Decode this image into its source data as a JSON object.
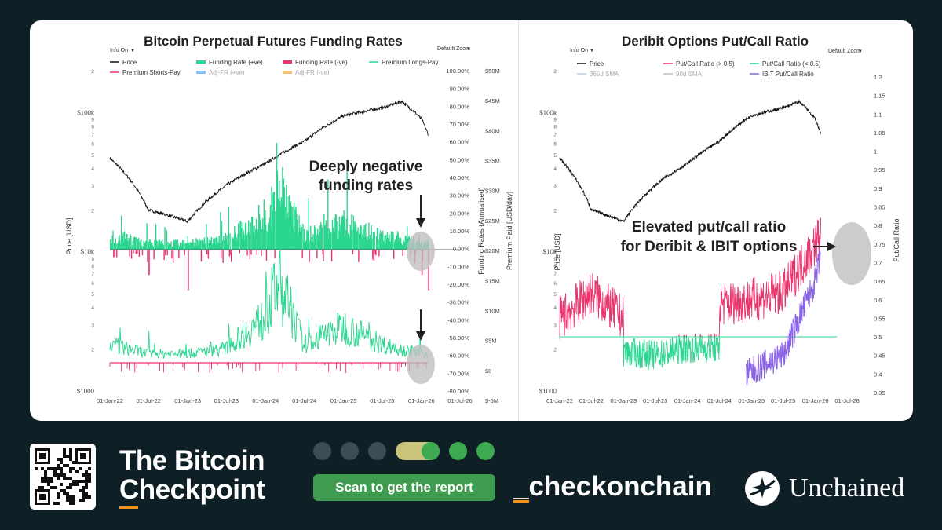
{
  "colors": {
    "price": "#111111",
    "funding_pos": "#2bd68f",
    "funding_neg": "#e8356d",
    "premium_longs": "#2bd68f",
    "premium_shorts": "#e8356d",
    "adj_fr_pos": "#8fc1ee",
    "adj_fr_neg": "#f4c27f",
    "pc_high": "#e8356d",
    "pc_low": "#2bd68f",
    "sma365": "#b9d4ee",
    "sma90": "#bdbdbd",
    "ibit": "#8a63e6",
    "highlight": "#bfbfbf",
    "brand_green": "#3f9b50",
    "accent_orange": "#f7931a",
    "background": "#0f1f26"
  },
  "chart_data": [
    {
      "type": "line",
      "title": "Bitcoin Perpetual Futures Funding Rates",
      "info_label": "Info On",
      "zoom_label": "Default Zoom",
      "xlabel": "",
      "ylabel_left": "Price [USD]",
      "ylabel_right": "Funding Rates (Annualised)",
      "ylabel_right2": "Premium Paid [USD/day]",
      "x_ticks": [
        "01-Jan-22",
        "01-Jul-22",
        "01-Jan-23",
        "01-Jul-23",
        "01-Jan-24",
        "01-Jul-24",
        "01-Jan-25",
        "01-Jul-25",
        "01-Jan-26",
        "01-Jul-26"
      ],
      "price_ticks": [
        "$100k",
        "$10k",
        "$1000"
      ],
      "price_minor_ticks": [
        "9",
        "8",
        "7",
        "6",
        "5",
        "4",
        "3",
        "2"
      ],
      "price_top_minor": "2",
      "rate_ticks": [
        "100.00%",
        "90.00%",
        "80.00%",
        "70.00%",
        "60.00%",
        "50.00%",
        "40.00%",
        "30.00%",
        "20.00%",
        "10.00%",
        "0.00%",
        "-10.00%",
        "-20.00%",
        "-30.00%",
        "-40.00%",
        "-50.00%",
        "-60.00%",
        "-70.00%",
        "-80.00%"
      ],
      "premium_ticks": [
        "$50M",
        "$45M",
        "$40M",
        "$35M",
        "$30M",
        "$25M",
        "$20M",
        "$15M",
        "$10M",
        "$5M",
        "$0",
        "$-5M"
      ],
      "legend": [
        "Price",
        "Funding Rate (+ve)",
        "Funding Rate (-ve)",
        "Premium Longs-Pay",
        "Premium Shorts-Pay",
        "Adj-FR (+ve)",
        "Adj-FR (-ve)"
      ],
      "annotation": [
        "Deeply negative",
        "funding rates"
      ],
      "series": [
        {
          "name": "Price",
          "x": [
            "01-Jan-22",
            "01-Jul-22",
            "01-Jan-23",
            "01-Jul-23",
            "01-Jan-24",
            "01-Jul-24",
            "01-Jan-25",
            "01-Jul-25",
            "01-Oct-25",
            "01-Jan-26",
            "01-Feb-26"
          ],
          "values": [
            47000,
            20000,
            16500,
            30000,
            43000,
            62000,
            95000,
            108000,
            120000,
            90000,
            70000
          ]
        },
        {
          "name": "Funding Rate (+ve)",
          "x": [
            "01-Jan-22",
            "01-Jul-22",
            "01-Jan-23",
            "01-Jul-23",
            "01-Jan-24",
            "01-Mar-24",
            "01-Jul-24",
            "01-Jan-25",
            "01-Jul-25",
            "01-Jan-26"
          ],
          "values": [
            10,
            5,
            5,
            8,
            25,
            45,
            10,
            20,
            10,
            5
          ]
        },
        {
          "name": "Funding Rate (-ve)",
          "x": [
            "01-Jul-22",
            "01-Jan-23",
            "01-Jan-26",
            "01-Feb-26"
          ],
          "values": [
            -5,
            -8,
            -5,
            -8
          ]
        }
      ]
    },
    {
      "type": "line",
      "title": "Deribit Options Put/Call Ratio",
      "info_label": "Info On",
      "zoom_label": "Default Zoom",
      "xlabel": "",
      "ylabel_left": "Price [USD]",
      "ylabel_right": "Put/Call Ratio",
      "x_ticks": [
        "01-Jan-22",
        "01-Jul-22",
        "01-Jan-23",
        "01-Jul-23",
        "01-Jan-24",
        "01-Jul-24",
        "01-Jan-25",
        "01-Jul-25",
        "01-Jan-26",
        "01-Jul-26"
      ],
      "price_ticks": [
        "$100k",
        "$10k",
        "$1000"
      ],
      "price_minor_ticks": [
        "9",
        "8",
        "7",
        "6",
        "5",
        "4",
        "3",
        "2"
      ],
      "price_top_minor": "2",
      "ratio_ticks": [
        "1.2",
        "1.15",
        "1.1",
        "1.05",
        "1",
        "0.95",
        "0.9",
        "0.85",
        "0.8",
        "0.75",
        "0.7",
        "0.65",
        "0.6",
        "0.55",
        "0.5",
        "0.45",
        "0.4",
        "0.35"
      ],
      "legend": [
        "Price",
        "Put/Call Ratio (> 0.5)",
        "Put/Call Ratio (< 0.5)",
        "365d SMA",
        "90d SMA",
        "IBIT Put/Call Ratio"
      ],
      "annotation": [
        "Elevated put/call ratio",
        "for Deribit & IBIT options"
      ],
      "series": [
        {
          "name": "Price",
          "x": [
            "01-Jan-22",
            "01-Jul-22",
            "01-Jan-23",
            "01-Jul-23",
            "01-Jan-24",
            "01-Jul-24",
            "01-Jan-25",
            "01-Jul-25",
            "01-Oct-25",
            "01-Jan-26",
            "01-Feb-26"
          ],
          "values": [
            47000,
            20000,
            16500,
            30000,
            43000,
            62000,
            95000,
            108000,
            120000,
            90000,
            70000
          ]
        },
        {
          "name": "Put/Call Ratio (> 0.5)",
          "x": [
            "01-Jan-22",
            "01-Jul-22",
            "01-Jan-23",
            "01-Jan-25",
            "01-Jul-25",
            "01-Jan-26",
            "01-Feb-26"
          ],
          "values": [
            0.55,
            0.62,
            0.55,
            0.6,
            0.62,
            0.75,
            0.78
          ]
        },
        {
          "name": "Put/Call Ratio (< 0.5)",
          "x": [
            "01-Jan-23",
            "01-Jul-23",
            "01-Jan-24",
            "01-Jul-24"
          ],
          "values": [
            0.46,
            0.45,
            0.47,
            0.47
          ]
        },
        {
          "name": "IBIT Put/Call Ratio",
          "x": [
            "01-Dec-24",
            "01-Jul-25",
            "01-Oct-25",
            "01-Jan-26",
            "01-Feb-26"
          ],
          "values": [
            0.4,
            0.45,
            0.55,
            0.65,
            0.72
          ]
        }
      ]
    }
  ],
  "footer": {
    "brand_line1": "The Bitcoin",
    "brand_line2": "Checkpoint",
    "cta": "Scan to get the report",
    "handle": "_checkonchain",
    "partner": "Unchained"
  }
}
